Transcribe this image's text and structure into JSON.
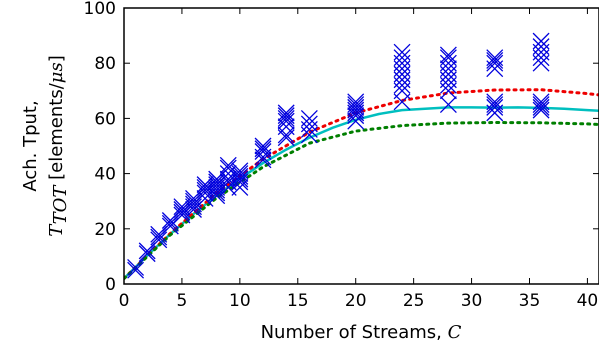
{
  "chart_data": {
    "type": "scatter",
    "xlabel": "Number of Streams, ",
    "xlabel_var": "C",
    "ylabel_line1": "Ach. Tput,",
    "ylabel_var": "T",
    "ylabel_sub": "TOT",
    "ylabel_unit": " [elements/",
    "ylabel_unit_var": "μs",
    "ylabel_unit_end": "]",
    "xlim": [
      0,
      41
    ],
    "ylim": [
      0,
      100
    ],
    "xticks": [
      0,
      5,
      10,
      15,
      20,
      25,
      30,
      35,
      40
    ],
    "yticks": [
      0,
      20,
      40,
      60,
      80,
      100
    ],
    "grid": false,
    "colors": {
      "markers": "#0000dd",
      "fit_solid": "#00bfbf",
      "upper_dotted": "#ee0000",
      "lower_dotted": "#007f00"
    },
    "measurements": [
      {
        "x": 1,
        "y": [
          5,
          6
        ]
      },
      {
        "x": 2,
        "y": [
          11,
          12
        ]
      },
      {
        "x": 3,
        "y": [
          16,
          17,
          18
        ]
      },
      {
        "x": 4,
        "y": [
          21,
          22,
          23
        ]
      },
      {
        "x": 5,
        "y": [
          25,
          26,
          27,
          28
        ]
      },
      {
        "x": 6,
        "y": [
          27,
          28,
          29,
          30,
          31
        ]
      },
      {
        "x": 7,
        "y": [
          31,
          33,
          34,
          35,
          36
        ]
      },
      {
        "x": 8,
        "y": [
          32,
          33,
          34,
          35,
          36,
          37,
          38
        ]
      },
      {
        "x": 9,
        "y": [
          35,
          37,
          38,
          40,
          42,
          43
        ]
      },
      {
        "x": 10,
        "y": [
          35,
          37,
          38,
          39,
          40,
          41
        ]
      },
      {
        "x": 12,
        "y": [
          45,
          46,
          48,
          49,
          50
        ]
      },
      {
        "x": 14,
        "y": [
          53,
          54,
          57,
          59,
          60,
          61,
          62
        ]
      },
      {
        "x": 16,
        "y": [
          54,
          56,
          58,
          60
        ]
      },
      {
        "x": 20,
        "y": [
          59,
          61,
          62,
          63,
          64,
          65,
          66
        ]
      },
      {
        "x": 24,
        "y": [
          66,
          70,
          72,
          74,
          76,
          78,
          80,
          82,
          84
        ]
      },
      {
        "x": 28,
        "y": [
          65,
          70,
          72,
          74,
          76,
          78,
          80,
          82,
          83
        ]
      },
      {
        "x": 32,
        "y": [
          62,
          64,
          65,
          66,
          78,
          80,
          81,
          82
        ]
      },
      {
        "x": 36,
        "y": [
          63,
          64,
          65,
          66,
          80,
          82,
          84,
          86,
          88
        ]
      }
    ],
    "fit_curves": [
      {
        "style": "solid",
        "points": [
          [
            0,
            2
          ],
          [
            2,
            10.3
          ],
          [
            4,
            18.1
          ],
          [
            6,
            25.4
          ],
          [
            8,
            32.1
          ],
          [
            10,
            38.2
          ],
          [
            12,
            43.8
          ],
          [
            14,
            48.7
          ],
          [
            16,
            53
          ],
          [
            18,
            56.6
          ],
          [
            20,
            59.5
          ],
          [
            22,
            61.6
          ],
          [
            24,
            63
          ],
          [
            26,
            63.5
          ],
          [
            28,
            64
          ],
          [
            30,
            64
          ],
          [
            32,
            63.9
          ],
          [
            34,
            64
          ],
          [
            36,
            63.8
          ],
          [
            38,
            63.5
          ],
          [
            40,
            63
          ],
          [
            41,
            62.8
          ]
        ]
      },
      {
        "style": "dotted-upper",
        "points": [
          [
            0,
            2
          ],
          [
            4,
            18.3
          ],
          [
            8,
            33
          ],
          [
            12,
            45.2
          ],
          [
            16,
            55
          ],
          [
            20,
            62
          ],
          [
            24,
            66.5
          ],
          [
            28,
            69.2
          ],
          [
            32,
            70.3
          ],
          [
            36,
            70.4
          ],
          [
            40,
            69
          ],
          [
            41,
            68.5
          ]
        ]
      },
      {
        "style": "dotted-lower",
        "points": [
          [
            0,
            2
          ],
          [
            4,
            17.8
          ],
          [
            8,
            31.2
          ],
          [
            12,
            42.4
          ],
          [
            16,
            51
          ],
          [
            20,
            55.4
          ],
          [
            24,
            57.4
          ],
          [
            28,
            58.3
          ],
          [
            32,
            58.5
          ],
          [
            36,
            58.4
          ],
          [
            40,
            58
          ],
          [
            41,
            57.8
          ]
        ]
      }
    ]
  }
}
